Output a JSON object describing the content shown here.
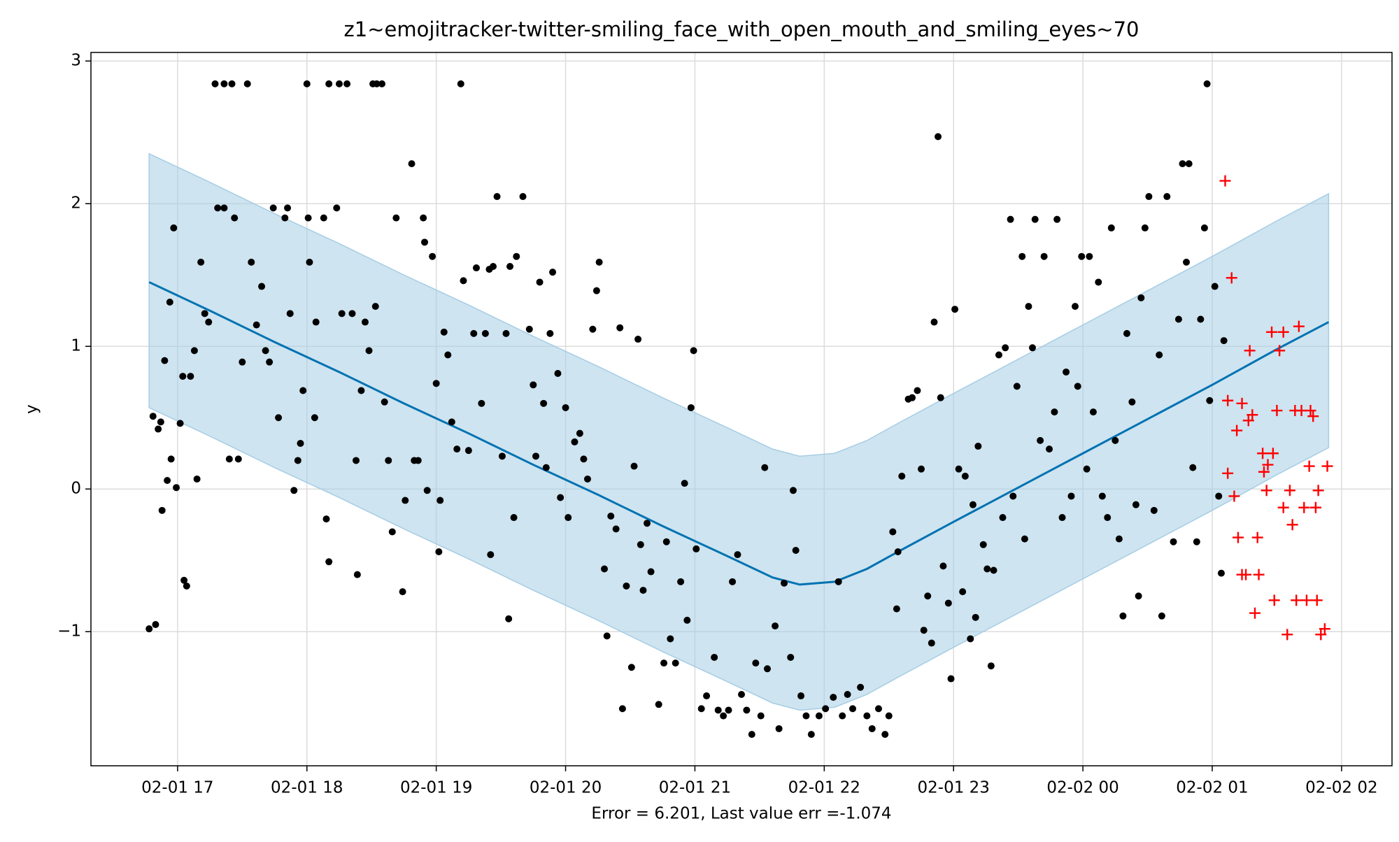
{
  "chart_data": {
    "type": "scatter",
    "title": "z1~emojitracker-twitter-smiling_face_with_open_mouth_and_smiling_eyes~70",
    "xlabel": "Error = 6.201, Last value err =-1.074",
    "ylabel": "y",
    "xlim": [
      16.33,
      26.39
    ],
    "ylim": [
      -1.94,
      3.06
    ],
    "xticks": [
      {
        "value": 17,
        "label": "02-01 17"
      },
      {
        "value": 18,
        "label": "02-01 18"
      },
      {
        "value": 19,
        "label": "02-01 19"
      },
      {
        "value": 20,
        "label": "02-01 20"
      },
      {
        "value": 21,
        "label": "02-01 21"
      },
      {
        "value": 22,
        "label": "02-01 22"
      },
      {
        "value": 23,
        "label": "02-01 23"
      },
      {
        "value": 24,
        "label": "02-02 00"
      },
      {
        "value": 25,
        "label": "02-02 01"
      },
      {
        "value": 26,
        "label": "02-02 02"
      }
    ],
    "yticks": [
      {
        "value": -1,
        "label": "−1"
      },
      0,
      1,
      2,
      3
    ],
    "grid": true,
    "series": [
      {
        "kind": "band-line",
        "color": "#0072b2",
        "band_color": "#a6cde4",
        "x": [
          16.78,
          17.25,
          17.75,
          18.25,
          18.75,
          19.25,
          19.75,
          20.25,
          20.75,
          21.25,
          21.6,
          21.81,
          22.08,
          22.33,
          22.57,
          23,
          23.5,
          24,
          24.5,
          25,
          25.5,
          25.9
        ],
        "values": [
          1.45,
          1.25,
          1.03,
          0.82,
          0.6,
          0.39,
          0.17,
          -0.04,
          -0.26,
          -0.47,
          -0.62,
          -0.67,
          -0.65,
          -0.56,
          -0.44,
          -0.23,
          0.01,
          0.25,
          0.49,
          0.73,
          0.98,
          1.17
        ],
        "upper": [
          2.35,
          2.15,
          1.93,
          1.72,
          1.5,
          1.29,
          1.07,
          0.86,
          0.64,
          0.43,
          0.28,
          0.23,
          0.25,
          0.34,
          0.46,
          0.67,
          0.91,
          1.15,
          1.39,
          1.63,
          1.88,
          2.07
        ],
        "lower": [
          0.57,
          0.37,
          0.15,
          -0.06,
          -0.28,
          -0.49,
          -0.71,
          -0.92,
          -1.14,
          -1.35,
          -1.5,
          -1.55,
          -1.53,
          -1.44,
          -1.32,
          -1.11,
          -0.87,
          -0.63,
          -0.39,
          -0.15,
          0.1,
          0.29
        ]
      },
      {
        "kind": "points",
        "marker": "dot",
        "color": "#000000",
        "x": [
          16.78,
          16.83,
          16.81,
          16.85,
          16.87,
          16.88,
          16.9,
          16.92,
          16.94,
          16.95,
          16.97,
          16.99,
          17.02,
          17.05,
          17.07,
          17.04,
          17.1,
          17.13,
          17.15,
          17.18,
          17.21,
          17.24,
          17.29,
          17.36,
          17.42,
          17.31,
          17.36,
          17.4,
          17.47,
          17.44,
          17.54,
          17.57,
          17.5,
          17.61,
          17.65,
          17.68,
          17.71,
          17.74,
          17.78,
          17.83,
          17.85,
          17.87,
          17.9,
          17.93,
          17.95,
          17.97,
          18,
          18.02,
          18.06,
          18.01,
          18.07,
          18.13,
          18.15,
          18.17,
          18.17,
          18.23,
          18.25,
          18.27,
          18.31,
          18.35,
          18.38,
          18.39,
          18.42,
          18.45,
          18.48,
          18.51,
          18.54,
          18.58,
          18.53,
          18.6,
          18.63,
          18.66,
          18.69,
          18.74,
          18.76,
          18.81,
          18.83,
          18.86,
          18.9,
          18.91,
          18.93,
          18.97,
          19,
          19.03,
          19.02,
          19.06,
          19.09,
          19.12,
          19.16,
          19.19,
          19.21,
          19.25,
          19.29,
          19.31,
          19.35,
          19.38,
          19.41,
          19.42,
          19.44,
          19.47,
          19.51,
          19.54,
          19.57,
          19.6,
          19.56,
          19.62,
          19.67,
          19.72,
          19.75,
          19.77,
          19.8,
          19.83,
          19.85,
          19.88,
          19.9,
          19.94,
          19.96,
          20,
          20.02,
          20.07,
          20.11,
          20.14,
          20.17,
          20.21,
          20.24,
          20.26,
          20.3,
          20.32,
          20.35,
          20.39,
          20.42,
          20.44,
          20.47,
          20.51,
          20.53,
          20.56,
          20.58,
          20.6,
          20.63,
          20.66,
          20.72,
          20.76,
          20.78,
          20.81,
          20.85,
          20.89,
          20.92,
          20.94,
          20.97,
          20.99,
          21.01,
          21.05,
          21.09,
          21.15,
          21.18,
          21.22,
          21.26,
          21.29,
          21.33,
          21.36,
          21.4,
          21.44,
          21.47,
          21.51,
          21.54,
          21.56,
          21.62,
          21.65,
          21.69,
          21.74,
          21.76,
          21.78,
          21.82,
          21.86,
          21.9,
          21.96,
          22.01,
          22.07,
          22.11,
          22.14,
          22.18,
          22.22,
          22.28,
          22.33,
          22.37,
          22.42,
          22.47,
          22.5,
          22.53,
          22.56,
          22.57,
          22.6,
          22.65,
          22.68,
          22.72,
          22.75,
          22.77,
          22.8,
          22.83,
          22.85,
          22.88,
          22.9,
          22.92,
          22.96,
          22.98,
          23.01,
          23.04,
          23.07,
          23.09,
          23.13,
          23.15,
          23.17,
          23.19,
          23.23,
          23.26,
          23.29,
          23.31,
          23.35,
          23.38,
          23.4,
          23.44,
          23.46,
          23.49,
          23.53,
          23.55,
          23.58,
          23.61,
          23.63,
          23.67,
          23.7,
          23.74,
          23.78,
          23.8,
          23.84,
          23.87,
          23.91,
          23.94,
          23.96,
          23.99,
          24.03,
          24.05,
          24.08,
          24.12,
          24.15,
          24.19,
          24.22,
          24.25,
          24.28,
          24.31,
          24.34,
          24.38,
          24.41,
          24.43,
          24.45,
          24.48,
          24.51,
          24.55,
          24.59,
          24.61,
          24.65,
          24.7,
          24.74,
          24.77,
          24.8,
          24.82,
          24.85,
          24.88,
          24.91,
          24.94,
          24.96,
          24.98,
          25.02,
          25.05,
          25.07,
          25.09
        ],
        "values": [
          -0.98,
          -0.95,
          0.51,
          0.42,
          0.47,
          -0.15,
          0.9,
          0.06,
          1.31,
          0.21,
          1.83,
          0.01,
          0.46,
          -0.64,
          -0.68,
          0.79,
          0.79,
          0.97,
          0.07,
          1.59,
          1.23,
          1.17,
          2.84,
          2.84,
          2.84,
          1.97,
          1.97,
          0.21,
          0.21,
          1.9,
          2.84,
          1.59,
          0.89,
          1.15,
          1.42,
          0.97,
          0.89,
          1.97,
          0.5,
          1.9,
          1.97,
          1.23,
          -0.01,
          0.2,
          0.32,
          0.69,
          2.84,
          1.59,
          0.5,
          1.9,
          1.17,
          1.9,
          -0.21,
          -0.51,
          2.84,
          1.97,
          2.84,
          1.23,
          2.84,
          1.23,
          0.2,
          -0.6,
          0.69,
          1.17,
          0.97,
          2.84,
          2.84,
          2.84,
          1.28,
          0.61,
          0.2,
          -0.3,
          1.9,
          -0.72,
          -0.08,
          2.28,
          0.2,
          0.2,
          1.9,
          1.73,
          -0.01,
          1.63,
          0.74,
          -0.08,
          -0.44,
          1.1,
          0.94,
          0.47,
          0.28,
          2.84,
          1.46,
          0.27,
          1.09,
          1.55,
          0.6,
          1.09,
          1.54,
          -0.46,
          1.56,
          2.05,
          0.23,
          1.09,
          1.56,
          -0.2,
          -0.91,
          1.63,
          2.05,
          1.12,
          0.73,
          0.23,
          1.45,
          0.6,
          0.15,
          1.09,
          1.52,
          0.81,
          -0.06,
          0.57,
          -0.2,
          0.33,
          0.39,
          0.21,
          0.07,
          1.12,
          1.39,
          1.59,
          -0.56,
          -1.03,
          -0.19,
          -0.28,
          1.13,
          -1.54,
          -0.68,
          -1.25,
          0.16,
          1.05,
          -0.39,
          -0.71,
          -0.24,
          -0.58,
          -1.51,
          -1.22,
          -0.37,
          -1.05,
          -1.22,
          -0.65,
          0.04,
          -0.92,
          0.57,
          0.97,
          -0.42,
          -1.54,
          -1.45,
          -1.18,
          -1.55,
          -1.59,
          -1.55,
          -0.65,
          -0.46,
          -1.44,
          -1.55,
          -1.72,
          -1.22,
          -1.59,
          0.15,
          -1.26,
          -0.96,
          -1.68,
          -0.66,
          -1.18,
          -0.01,
          -0.43,
          -1.45,
          -1.59,
          -1.72,
          -1.59,
          -1.54,
          -1.46,
          -0.65,
          -1.59,
          -1.44,
          -1.54,
          -1.39,
          -1.59,
          -1.68,
          -1.54,
          -1.72,
          -1.59,
          -0.3,
          -0.84,
          -0.44,
          0.09,
          0.63,
          0.64,
          0.69,
          0.14,
          -0.99,
          -0.75,
          -1.08,
          1.17,
          2.47,
          0.64,
          -0.54,
          -0.8,
          -1.33,
          1.26,
          0.14,
          -0.72,
          0.09,
          -1.05,
          -0.11,
          -0.9,
          0.3,
          -0.39,
          -0.56,
          -1.24,
          -0.57,
          0.94,
          -0.2,
          0.99,
          1.89,
          -0.05,
          0.72,
          1.63,
          -0.35,
          1.28,
          0.99,
          1.89,
          0.34,
          1.63,
          0.28,
          0.54,
          1.89,
          -0.2,
          0.82,
          -0.05,
          1.28,
          0.72,
          1.63,
          0.14,
          1.63,
          0.54,
          1.45,
          -0.05,
          -0.2,
          1.83,
          0.34,
          -0.35,
          -0.89,
          1.09,
          0.61,
          -0.11,
          -0.75,
          1.34,
          1.83,
          2.05,
          -0.15,
          0.94,
          -0.89,
          2.05,
          -0.37,
          1.19,
          2.28,
          1.59,
          2.28,
          0.15,
          -0.37,
          1.19,
          1.83,
          2.84,
          0.62,
          1.42,
          -0.05,
          -0.59,
          1.04
        ]
      },
      {
        "kind": "points",
        "marker": "plus",
        "color": "#ff0000",
        "x": [
          25.1,
          25.15,
          25.12,
          25.12,
          25.17,
          25.19,
          25.2,
          25.23,
          25.23,
          25.26,
          25.28,
          25.29,
          25.31,
          25.33,
          25.35,
          25.36,
          25.39,
          25.4,
          25.42,
          25.43,
          25.46,
          25.47,
          25.48,
          25.5,
          25.52,
          25.55,
          25.55,
          25.58,
          25.6,
          25.62,
          25.64,
          25.65,
          25.67,
          25.69,
          25.71,
          25.73,
          25.75,
          25.76,
          25.78,
          25.8,
          25.81,
          25.82,
          25.84,
          25.87,
          25.89
        ],
        "values": [
          2.16,
          1.48,
          0.11,
          0.62,
          -0.05,
          0.41,
          -0.34,
          0.6,
          -0.6,
          -0.6,
          0.48,
          0.97,
          0.52,
          -0.87,
          -0.34,
          -0.6,
          0.25,
          0.12,
          -0.01,
          0.17,
          1.1,
          0.25,
          -0.78,
          0.55,
          0.97,
          1.1,
          -0.13,
          -1.02,
          -0.01,
          -0.25,
          0.55,
          -0.78,
          1.14,
          0.55,
          -0.13,
          -0.78,
          0.16,
          0.55,
          0.51,
          -0.13,
          -0.78,
          -0.01,
          -1.02,
          -0.98,
          0.16
        ]
      }
    ]
  }
}
